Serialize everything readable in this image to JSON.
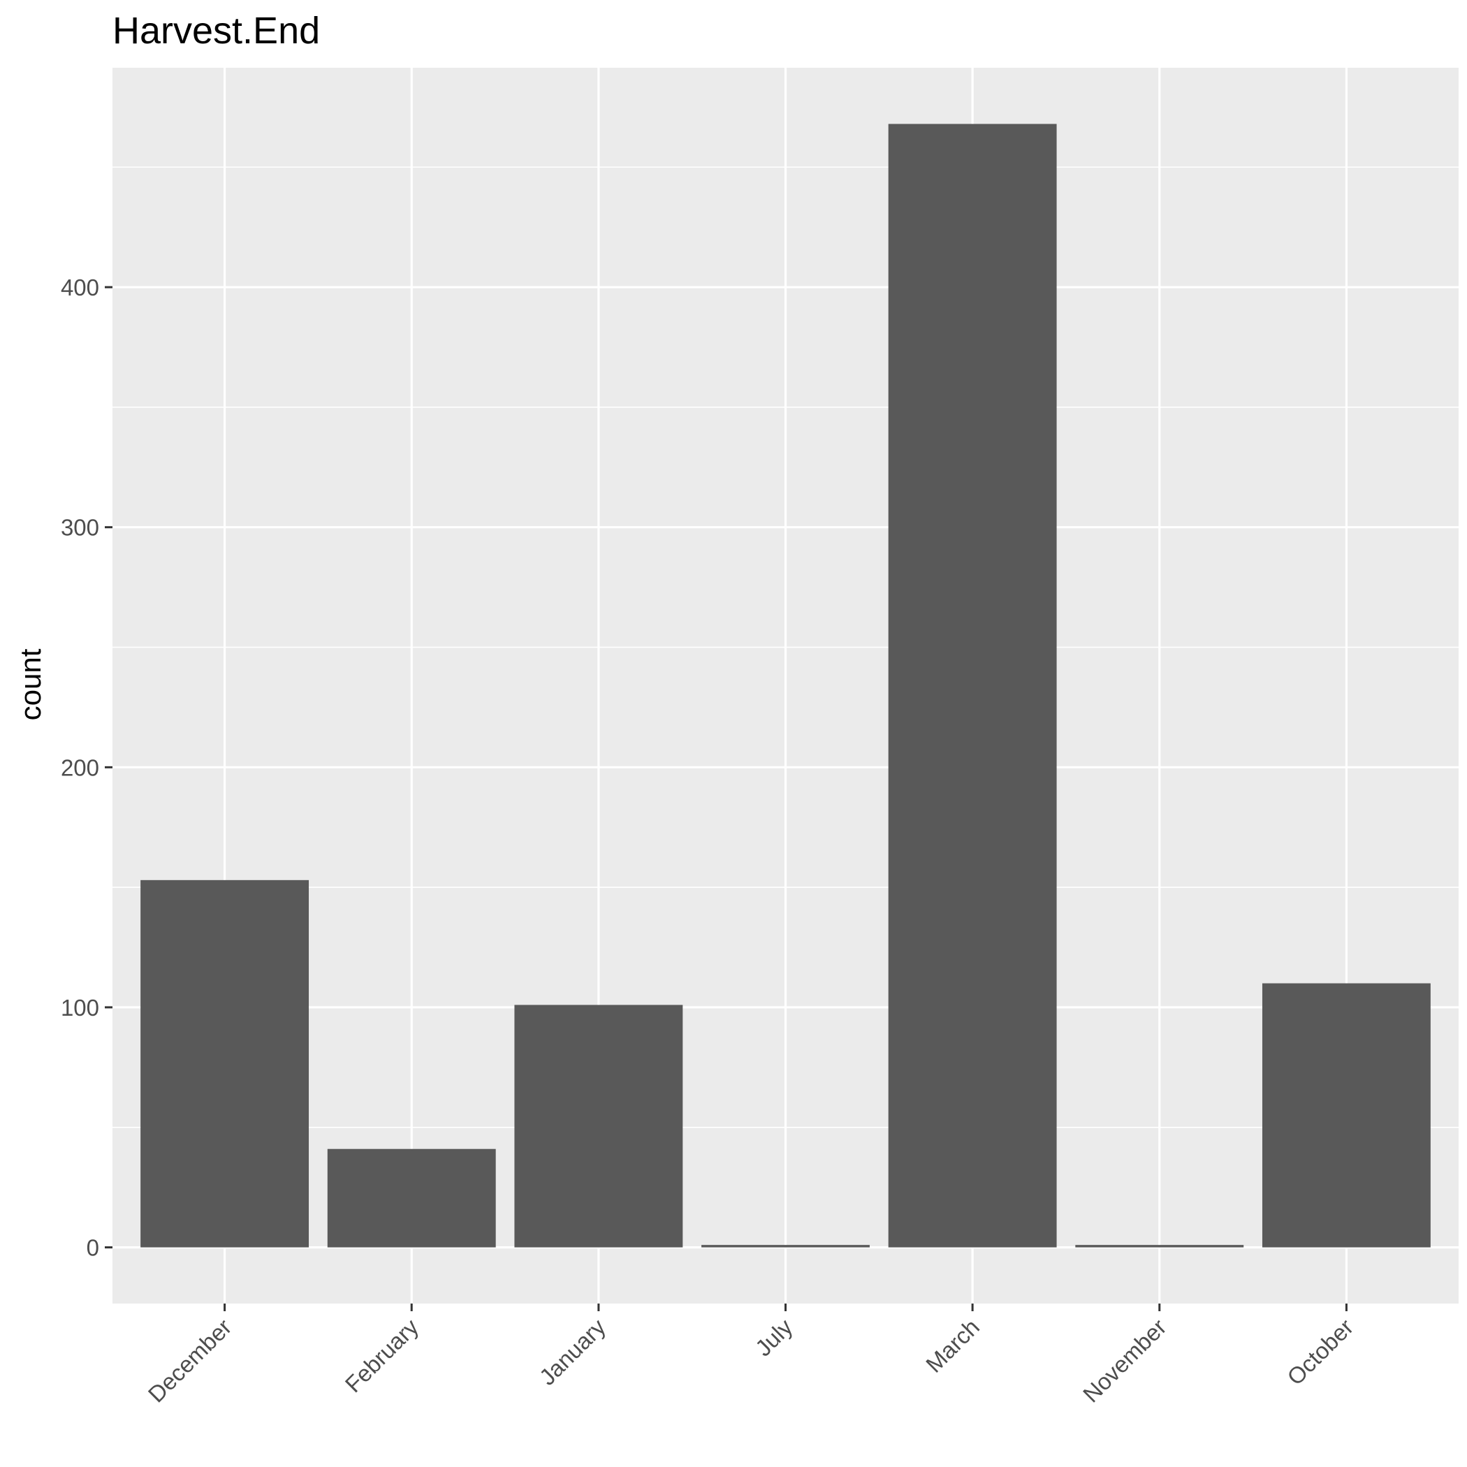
{
  "chart_data": {
    "type": "bar",
    "title": "Harvest.End",
    "xlabel": "",
    "ylabel": "count",
    "categories": [
      "December",
      "February",
      "January",
      "July",
      "March",
      "November",
      "October"
    ],
    "values": [
      153,
      41,
      101,
      1,
      468,
      1,
      110
    ],
    "ylim": [
      -23.4,
      491.4
    ],
    "yticks": [
      0,
      100,
      200,
      300,
      400
    ],
    "grid": true,
    "colors": {
      "panel": "#ebebeb",
      "grid": "#ffffff",
      "bar": "#595959",
      "tick_text": "#4d4d4d",
      "tick_mark": "#333333"
    }
  }
}
